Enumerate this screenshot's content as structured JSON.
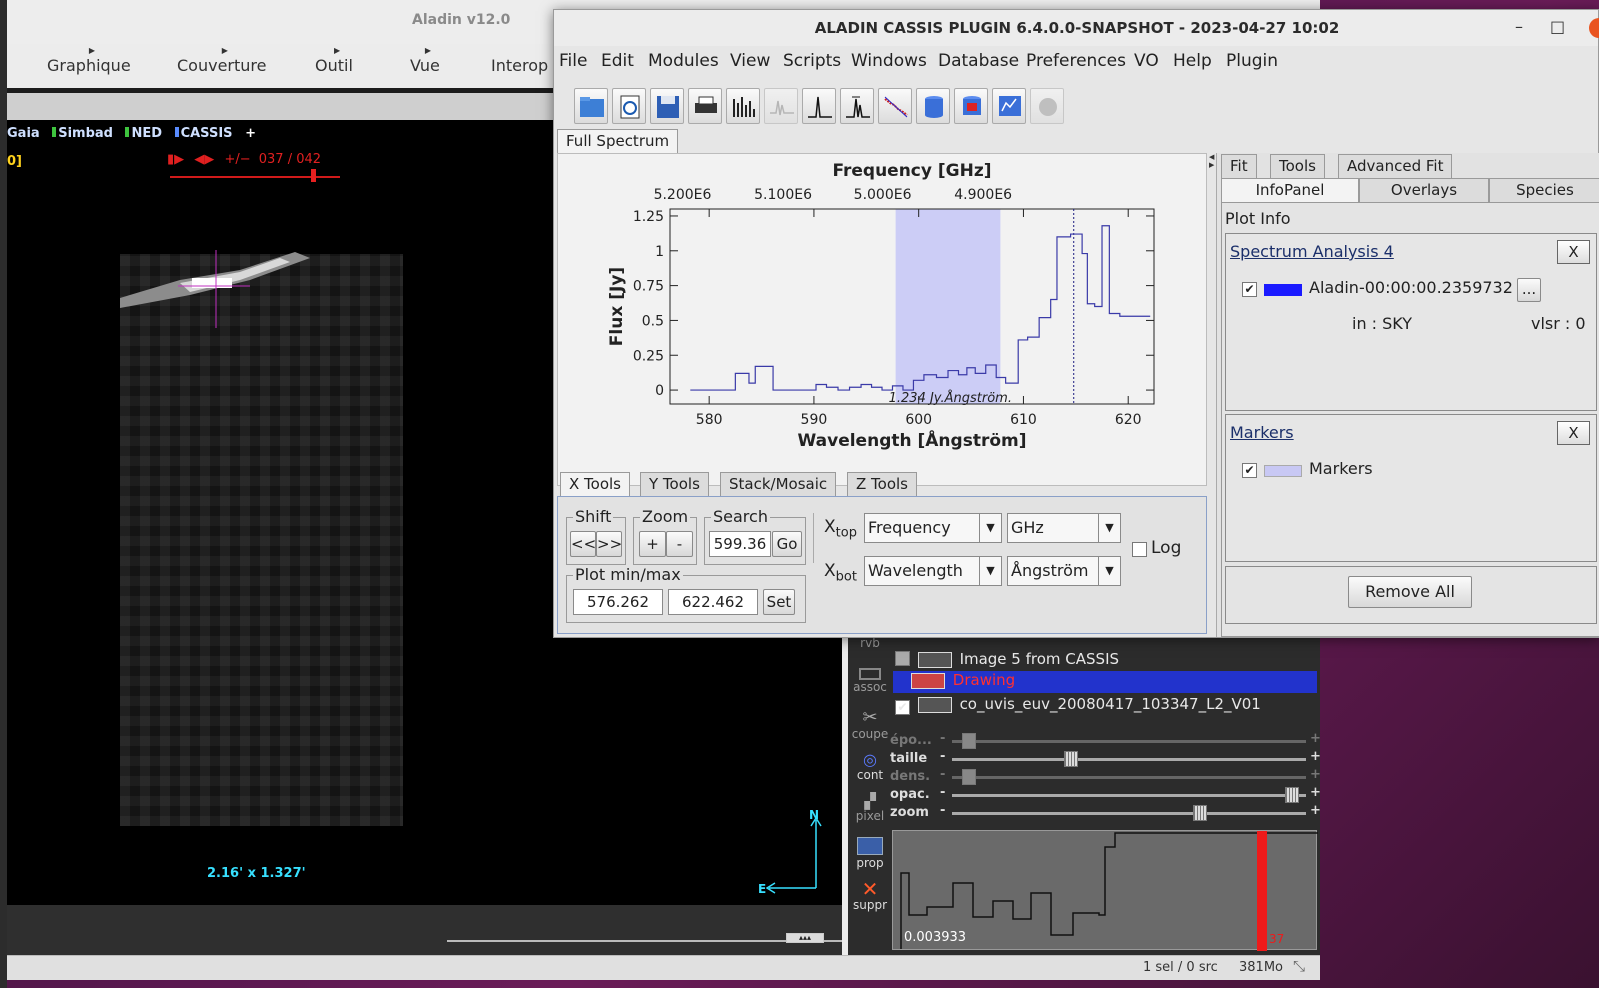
{
  "desktop": {},
  "aladin": {
    "title": "Aladin v12.0",
    "menu": [
      "Graphique",
      "Couverture",
      "Outil",
      "Vue",
      "Interop"
    ],
    "sources": {
      "first": "Gaia",
      "simbad": "Simbad",
      "ned": "NED",
      "cassis": "CASSIS",
      "add": "+"
    },
    "frame_label": "0]",
    "frame_counter": "037 / 042",
    "frame_controls": "+/−",
    "fov": "2.16' x 1.327'",
    "compass": {
      "north": "N",
      "east": "E"
    },
    "tools": [
      "rvb",
      "assoc",
      "coupe",
      "cont",
      "pixel",
      "prop",
      "suppr"
    ],
    "layers": [
      {
        "name": "Image 5 from CASSIS",
        "checked": false,
        "selected": false
      },
      {
        "name": "Drawing",
        "checked": false,
        "selected": true
      },
      {
        "name": "co_uvis_euv_20080417_103347_L2_V01",
        "checked": true,
        "selected": false
      }
    ],
    "sliders": [
      {
        "label": "épo...",
        "level": 0.03,
        "enabled": false
      },
      {
        "label": "taille",
        "level": 0.33,
        "enabled": true
      },
      {
        "label": "dens.",
        "level": 0.03,
        "enabled": false
      },
      {
        "label": "opac.",
        "level": 0.98,
        "enabled": true
      },
      {
        "label": "zoom",
        "level": 0.71,
        "enabled": true
      }
    ],
    "hist_min": "0.003933",
    "hist_marker": "37",
    "status": {
      "selection": "1 sel / 0 src",
      "memory": "381Mo"
    }
  },
  "cassis": {
    "title": "ALADIN CASSIS PLUGIN 6.4.0.0-SNAPSHOT - 2023-04-27 10:02",
    "window_buttons": {
      "minimize": "–",
      "maximize": "□"
    },
    "menu": [
      "File",
      "Edit",
      "Modules",
      "View",
      "Scripts",
      "Windows",
      "Database",
      "Preferences",
      "VO",
      "Help",
      "Plugin"
    ],
    "tab_main": "Full Spectrum",
    "bottom_tabs": [
      "X Tools",
      "Y Tools",
      "Stack/Mosaic",
      "Z Tools"
    ],
    "shift": {
      "label": "Shift",
      "left": "<<",
      "right": ">>"
    },
    "zoom": {
      "label": "Zoom",
      "plus": "+",
      "minus": "-"
    },
    "search": {
      "label": "Search",
      "value": "599.36",
      "go": "Go"
    },
    "plotminmax": {
      "label": "Plot min/max",
      "min": "576.262",
      "max": "622.462",
      "set": "Set"
    },
    "xtop": {
      "label": "X",
      "sub": "top",
      "axis": "Frequency",
      "unit": "GHz"
    },
    "xbot": {
      "label": "X",
      "sub": "bot",
      "axis": "Wavelength",
      "unit": "Ångström"
    },
    "log_label": "Log",
    "side_tabs_row1": [
      "Fit",
      "Tools",
      "Advanced Fit"
    ],
    "side_tabs_row2": [
      "InfoPanel",
      "Overlays",
      "Species"
    ],
    "plot_info": "Plot Info",
    "spectrum": {
      "title": "Spectrum Analysis 4",
      "close": "X",
      "name": "Aladin-00:00:00.2359732 ...",
      "more": "...",
      "in": "in : SKY",
      "vlsr": "vlsr : 0",
      "color": "#1a1aff"
    },
    "markers": {
      "title": "Markers",
      "close": "X",
      "name": "Markers",
      "color": "#c8c8f4"
    },
    "remove_all": "Remove All"
  },
  "chart_data": {
    "type": "line",
    "title": "Frequency [GHz]",
    "xlabel": "Wavelength [Ångström]",
    "ylabel": "Flux [Jy]",
    "xlim": [
      576.262,
      622.462
    ],
    "ylim": [
      -0.1,
      1.3
    ],
    "x_ticks": [
      "580",
      "590",
      "600",
      "610",
      "620"
    ],
    "y_ticks": [
      "0",
      "0.25",
      "0.5",
      "0.75",
      "1",
      "1.25"
    ],
    "top_ticks": [
      "5.200E6",
      "5.100E6",
      "5.000E6",
      "4.900E6"
    ],
    "top_tick_x": [
      576.5,
      586.1,
      595.6,
      605.2
    ],
    "series_color": "#3a3aa8",
    "x": [
      578.2,
      580.5,
      581.7,
      582.5,
      583.8,
      584.4,
      585.0,
      586.1,
      587.3,
      589.0,
      590.2,
      591.2,
      592.3,
      593.4,
      594.5,
      595.5,
      596.5,
      597.5,
      598.5,
      599.5,
      600.5,
      601.7,
      602.8,
      603.8,
      604.6,
      605.4,
      606.4,
      607.4,
      608.3,
      609.5,
      610.4,
      611.5,
      612.6,
      613.2,
      614.5,
      615.6,
      616.1,
      616.8,
      617.5,
      618.2,
      619.2,
      620.3,
      621.2
    ],
    "y": [
      0.0,
      0.0,
      0.0,
      0.12,
      0.05,
      0.17,
      0.17,
      0.0,
      0.0,
      0.0,
      0.04,
      0.02,
      0.0,
      0.02,
      0.04,
      0.02,
      0.0,
      0.03,
      0.0,
      0.07,
      0.11,
      0.09,
      0.14,
      0.11,
      0.16,
      0.12,
      0.18,
      0.09,
      0.05,
      0.36,
      0.38,
      0.52,
      0.65,
      1.1,
      1.12,
      0.98,
      0.62,
      0.6,
      1.18,
      0.55,
      0.53,
      0.53,
      0.53
    ],
    "marker_band": [
      597.8,
      607.8
    ],
    "marker_line": 614.8,
    "annotation": "1.234 Jy.Ångström."
  }
}
